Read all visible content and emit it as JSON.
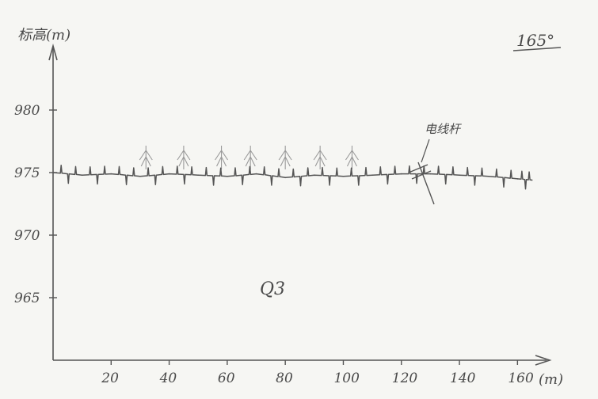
{
  "chart_data": {
    "type": "line",
    "title": "",
    "ylabel": "标高(m)",
    "xlabel": "(m)",
    "x_ticks": [
      20,
      40,
      60,
      80,
      100,
      120,
      140,
      160
    ],
    "y_ticks": [
      965,
      970,
      975,
      980
    ],
    "xlim": [
      0,
      170
    ],
    "ylim": [
      960,
      985
    ],
    "grid": false,
    "series": [
      {
        "values_note": "",
        "x": [
          0,
          10,
          20,
          30,
          40,
          50,
          60,
          70,
          80,
          90,
          100,
          110,
          120,
          130,
          140,
          150,
          160,
          165
        ],
        "y": [
          975.0,
          974.8,
          974.9,
          974.7,
          974.9,
          974.8,
          974.7,
          974.9,
          974.6,
          974.8,
          974.7,
          974.8,
          974.9,
          974.9,
          974.8,
          974.7,
          974.5,
          974.4
        ]
      }
    ],
    "annotations": {
      "bearing": "165°",
      "layer_label": "Q3",
      "power_line": "电线杆"
    }
  },
  "colors": {
    "ink": "#4a4a4a",
    "paper": "#f6f6f3"
  }
}
